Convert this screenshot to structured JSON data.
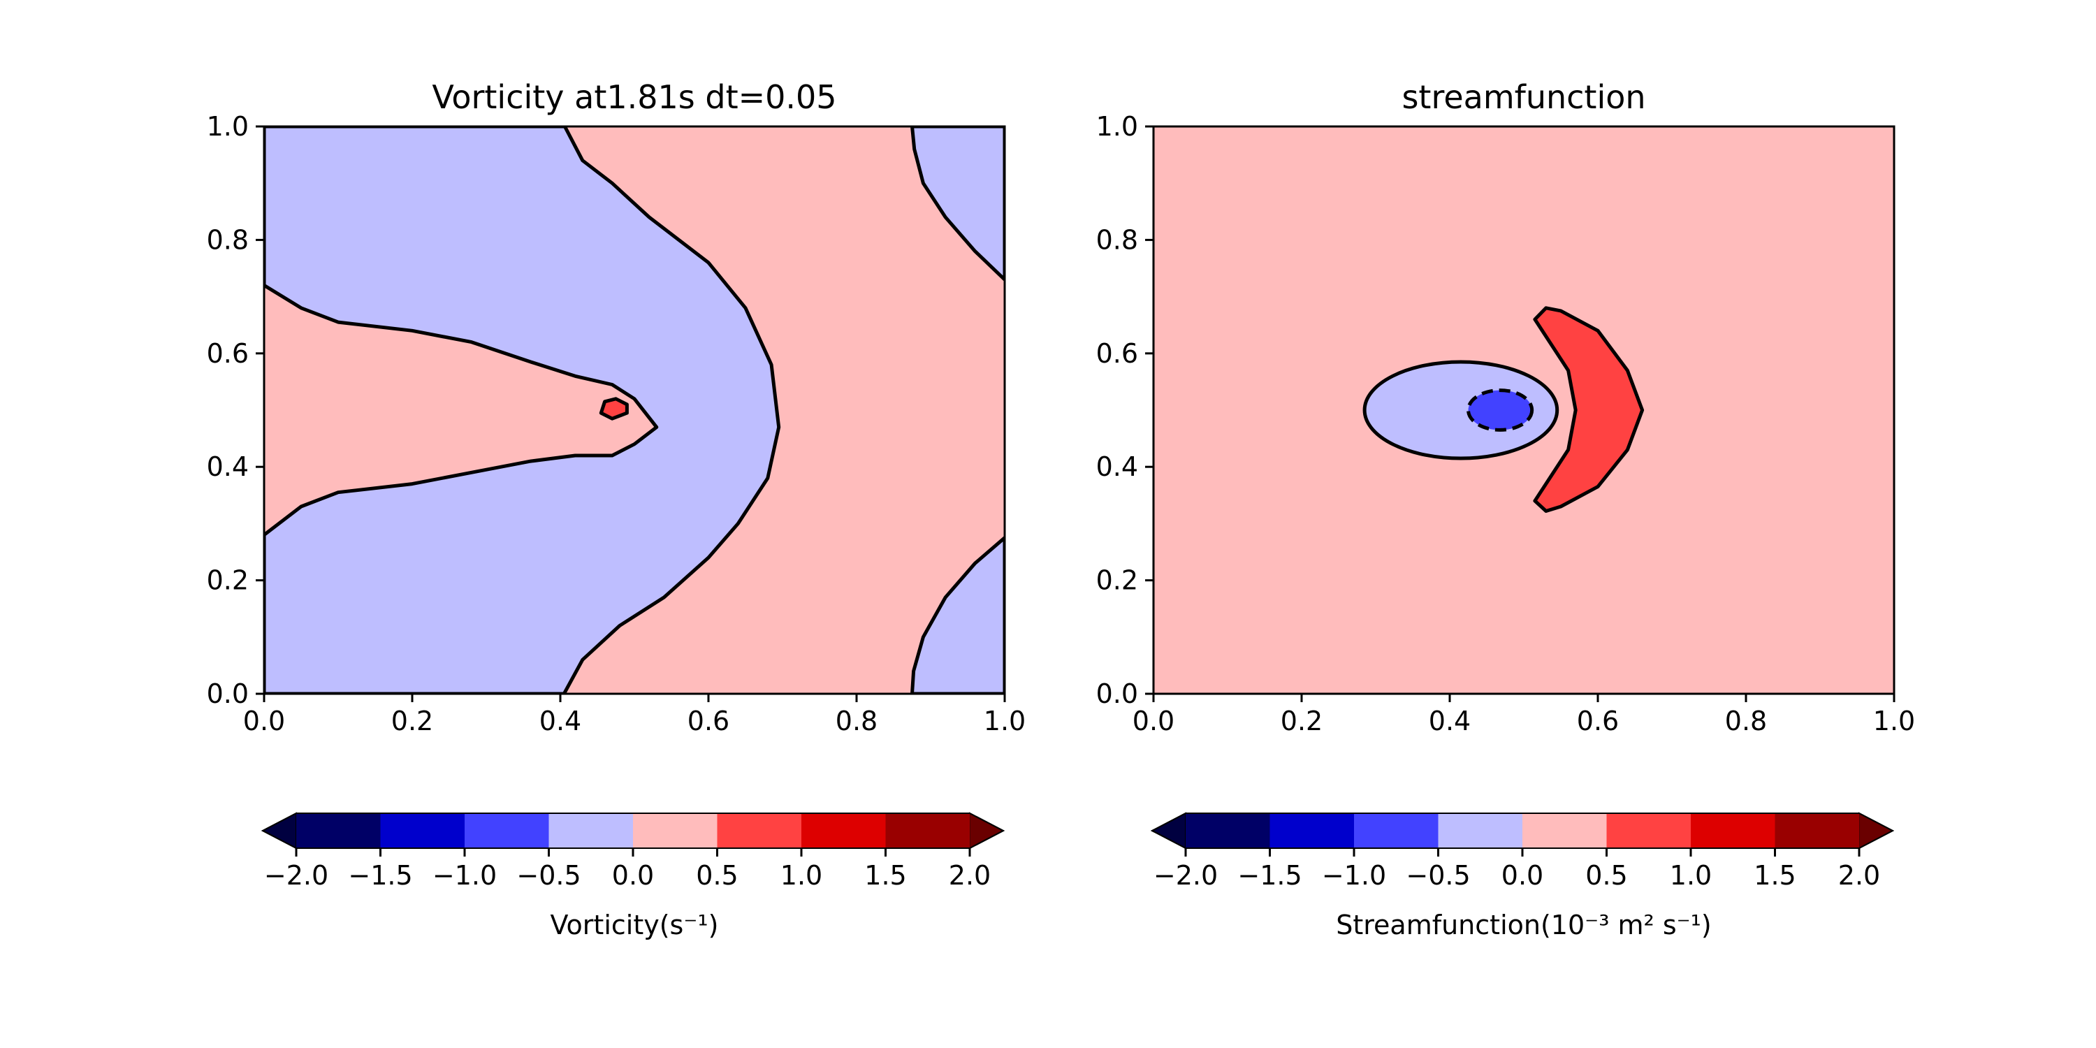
{
  "chart_data": [
    {
      "type": "contour",
      "title": "Vorticity at1.81s dt=0.05",
      "xlim": [
        0.0,
        1.0
      ],
      "ylim": [
        0.0,
        1.0
      ],
      "xticks": [
        "0.0",
        "0.2",
        "0.4",
        "0.6",
        "0.8",
        "1.0"
      ],
      "yticks": [
        "0.0",
        "0.2",
        "0.4",
        "0.6",
        "0.8",
        "1.0"
      ],
      "grid": false,
      "contour_levels": [
        -2.0,
        -1.5,
        -1.0,
        -0.5,
        0.0,
        0.5,
        1.0,
        1.5,
        2.0
      ],
      "regions": [
        {
          "level_range": [
            0.0,
            0.5
          ],
          "description": "background",
          "color": "#ffbcbc"
        },
        {
          "level_range": [
            -0.5,
            0.0
          ],
          "description": "upper-left lobe",
          "color": "#bebeff",
          "outline": [
            [
              0.0,
              1.0
            ],
            [
              0.406,
              1.0
            ],
            [
              0.43,
              0.94
            ],
            [
              0.47,
              0.9
            ],
            [
              0.52,
              0.84
            ],
            [
              0.6,
              0.76
            ],
            [
              0.65,
              0.68
            ],
            [
              0.685,
              0.58
            ],
            [
              0.695,
              0.47
            ],
            [
              0.68,
              0.38
            ],
            [
              0.64,
              0.3
            ],
            [
              0.6,
              0.24
            ],
            [
              0.54,
              0.17
            ],
            [
              0.48,
              0.12
            ],
            [
              0.43,
              0.06
            ],
            [
              0.405,
              0.0
            ],
            [
              0.0,
              0.0
            ],
            [
              0.0,
              0.28
            ],
            [
              0.05,
              0.33
            ],
            [
              0.1,
              0.355
            ],
            [
              0.2,
              0.37
            ],
            [
              0.28,
              0.39
            ],
            [
              0.36,
              0.41
            ],
            [
              0.42,
              0.42
            ],
            [
              0.47,
              0.42
            ],
            [
              0.5,
              0.44
            ],
            [
              0.53,
              0.47
            ],
            [
              0.5,
              0.52
            ],
            [
              0.47,
              0.545
            ],
            [
              0.42,
              0.56
            ],
            [
              0.36,
              0.585
            ],
            [
              0.28,
              0.62
            ],
            [
              0.2,
              0.64
            ],
            [
              0.1,
              0.655
            ],
            [
              0.05,
              0.68
            ],
            [
              0.0,
              0.72
            ]
          ]
        },
        {
          "level_range": [
            -0.5,
            0.0
          ],
          "description": "top-right corner",
          "color": "#bebeff",
          "outline": [
            [
              0.875,
              1.0
            ],
            [
              1.0,
              1.0
            ],
            [
              1.0,
              0.73
            ],
            [
              0.96,
              0.78
            ],
            [
              0.92,
              0.84
            ],
            [
              0.89,
              0.9
            ],
            [
              0.878,
              0.96
            ]
          ]
        },
        {
          "level_range": [
            -0.5,
            0.0
          ],
          "description": "bottom-right corner",
          "color": "#bebeff",
          "outline": [
            [
              0.875,
              0.0
            ],
            [
              1.0,
              0.0
            ],
            [
              1.0,
              0.275
            ],
            [
              0.96,
              0.23
            ],
            [
              0.92,
              0.17
            ],
            [
              0.89,
              0.1
            ],
            [
              0.877,
              0.04
            ]
          ]
        },
        {
          "level_range": [
            0.5,
            1.0
          ],
          "description": "small core near center",
          "color": "#ff4242",
          "outline": [
            [
              0.455,
              0.495
            ],
            [
              0.46,
              0.515
            ],
            [
              0.475,
              0.52
            ],
            [
              0.49,
              0.51
            ],
            [
              0.49,
              0.495
            ],
            [
              0.47,
              0.485
            ]
          ]
        }
      ],
      "colorbar": {
        "label": "Vorticity(s⁻¹)",
        "ticks": [
          "−2.0",
          "−1.5",
          "−1.0",
          "−0.5",
          "0.0",
          "0.5",
          "1.0",
          "1.5",
          "2.0"
        ],
        "colors": [
          "#000066",
          "#0000cc",
          "#4242ff",
          "#bebeff",
          "#ffbcbc",
          "#ff4242",
          "#dd0000",
          "#990000"
        ],
        "under_color": "#000040",
        "over_color": "#6a0000",
        "extend": "both"
      }
    },
    {
      "type": "contour",
      "title": "streamfunction",
      "xlim": [
        0.0,
        1.0
      ],
      "ylim": [
        0.0,
        1.0
      ],
      "xticks": [
        "0.0",
        "0.2",
        "0.4",
        "0.6",
        "0.8",
        "1.0"
      ],
      "yticks": [
        "0.0",
        "0.2",
        "0.4",
        "0.6",
        "0.8",
        "1.0"
      ],
      "grid": false,
      "contour_levels": [
        -2.0,
        -1.5,
        -1.0,
        -0.5,
        0.0,
        0.5,
        1.0,
        1.5,
        2.0
      ],
      "regions": [
        {
          "level_range": [
            0.0,
            0.5
          ],
          "description": "background",
          "color": "#ffbcbc"
        },
        {
          "level_range": [
            -0.5,
            0.0
          ],
          "description": "ellipse",
          "color": "#bebeff",
          "ellipse": {
            "cx": 0.415,
            "cy": 0.5,
            "rx": 0.13,
            "ry": 0.085
          }
        },
        {
          "level_range": [
            -1.0,
            -0.5
          ],
          "description": "inner ellipse (dashed)",
          "color": "#4242ff",
          "ellipse": {
            "cx": 0.468,
            "cy": 0.5,
            "rx": 0.043,
            "ry": 0.035
          }
        },
        {
          "level_range": [
            0.5,
            1.0
          ],
          "description": "crescent",
          "color": "#ff4242",
          "outline": [
            [
              0.515,
              0.66
            ],
            [
              0.53,
              0.68
            ],
            [
              0.55,
              0.675
            ],
            [
              0.6,
              0.64
            ],
            [
              0.64,
              0.57
            ],
            [
              0.66,
              0.5
            ],
            [
              0.64,
              0.43
            ],
            [
              0.6,
              0.365
            ],
            [
              0.55,
              0.33
            ],
            [
              0.53,
              0.322
            ],
            [
              0.515,
              0.34
            ],
            [
              0.535,
              0.38
            ],
            [
              0.56,
              0.43
            ],
            [
              0.57,
              0.5
            ],
            [
              0.56,
              0.57
            ],
            [
              0.535,
              0.62
            ]
          ]
        }
      ],
      "colorbar": {
        "label": "Streamfunction(10⁻³ m² s⁻¹)",
        "ticks": [
          "−2.0",
          "−1.5",
          "−1.0",
          "−0.5",
          "0.0",
          "0.5",
          "1.0",
          "1.5",
          "2.0"
        ],
        "colors": [
          "#000066",
          "#0000cc",
          "#4242ff",
          "#bebeff",
          "#ffbcbc",
          "#ff4242",
          "#dd0000",
          "#990000"
        ],
        "under_color": "#000040",
        "over_color": "#6a0000",
        "extend": "both"
      }
    }
  ]
}
